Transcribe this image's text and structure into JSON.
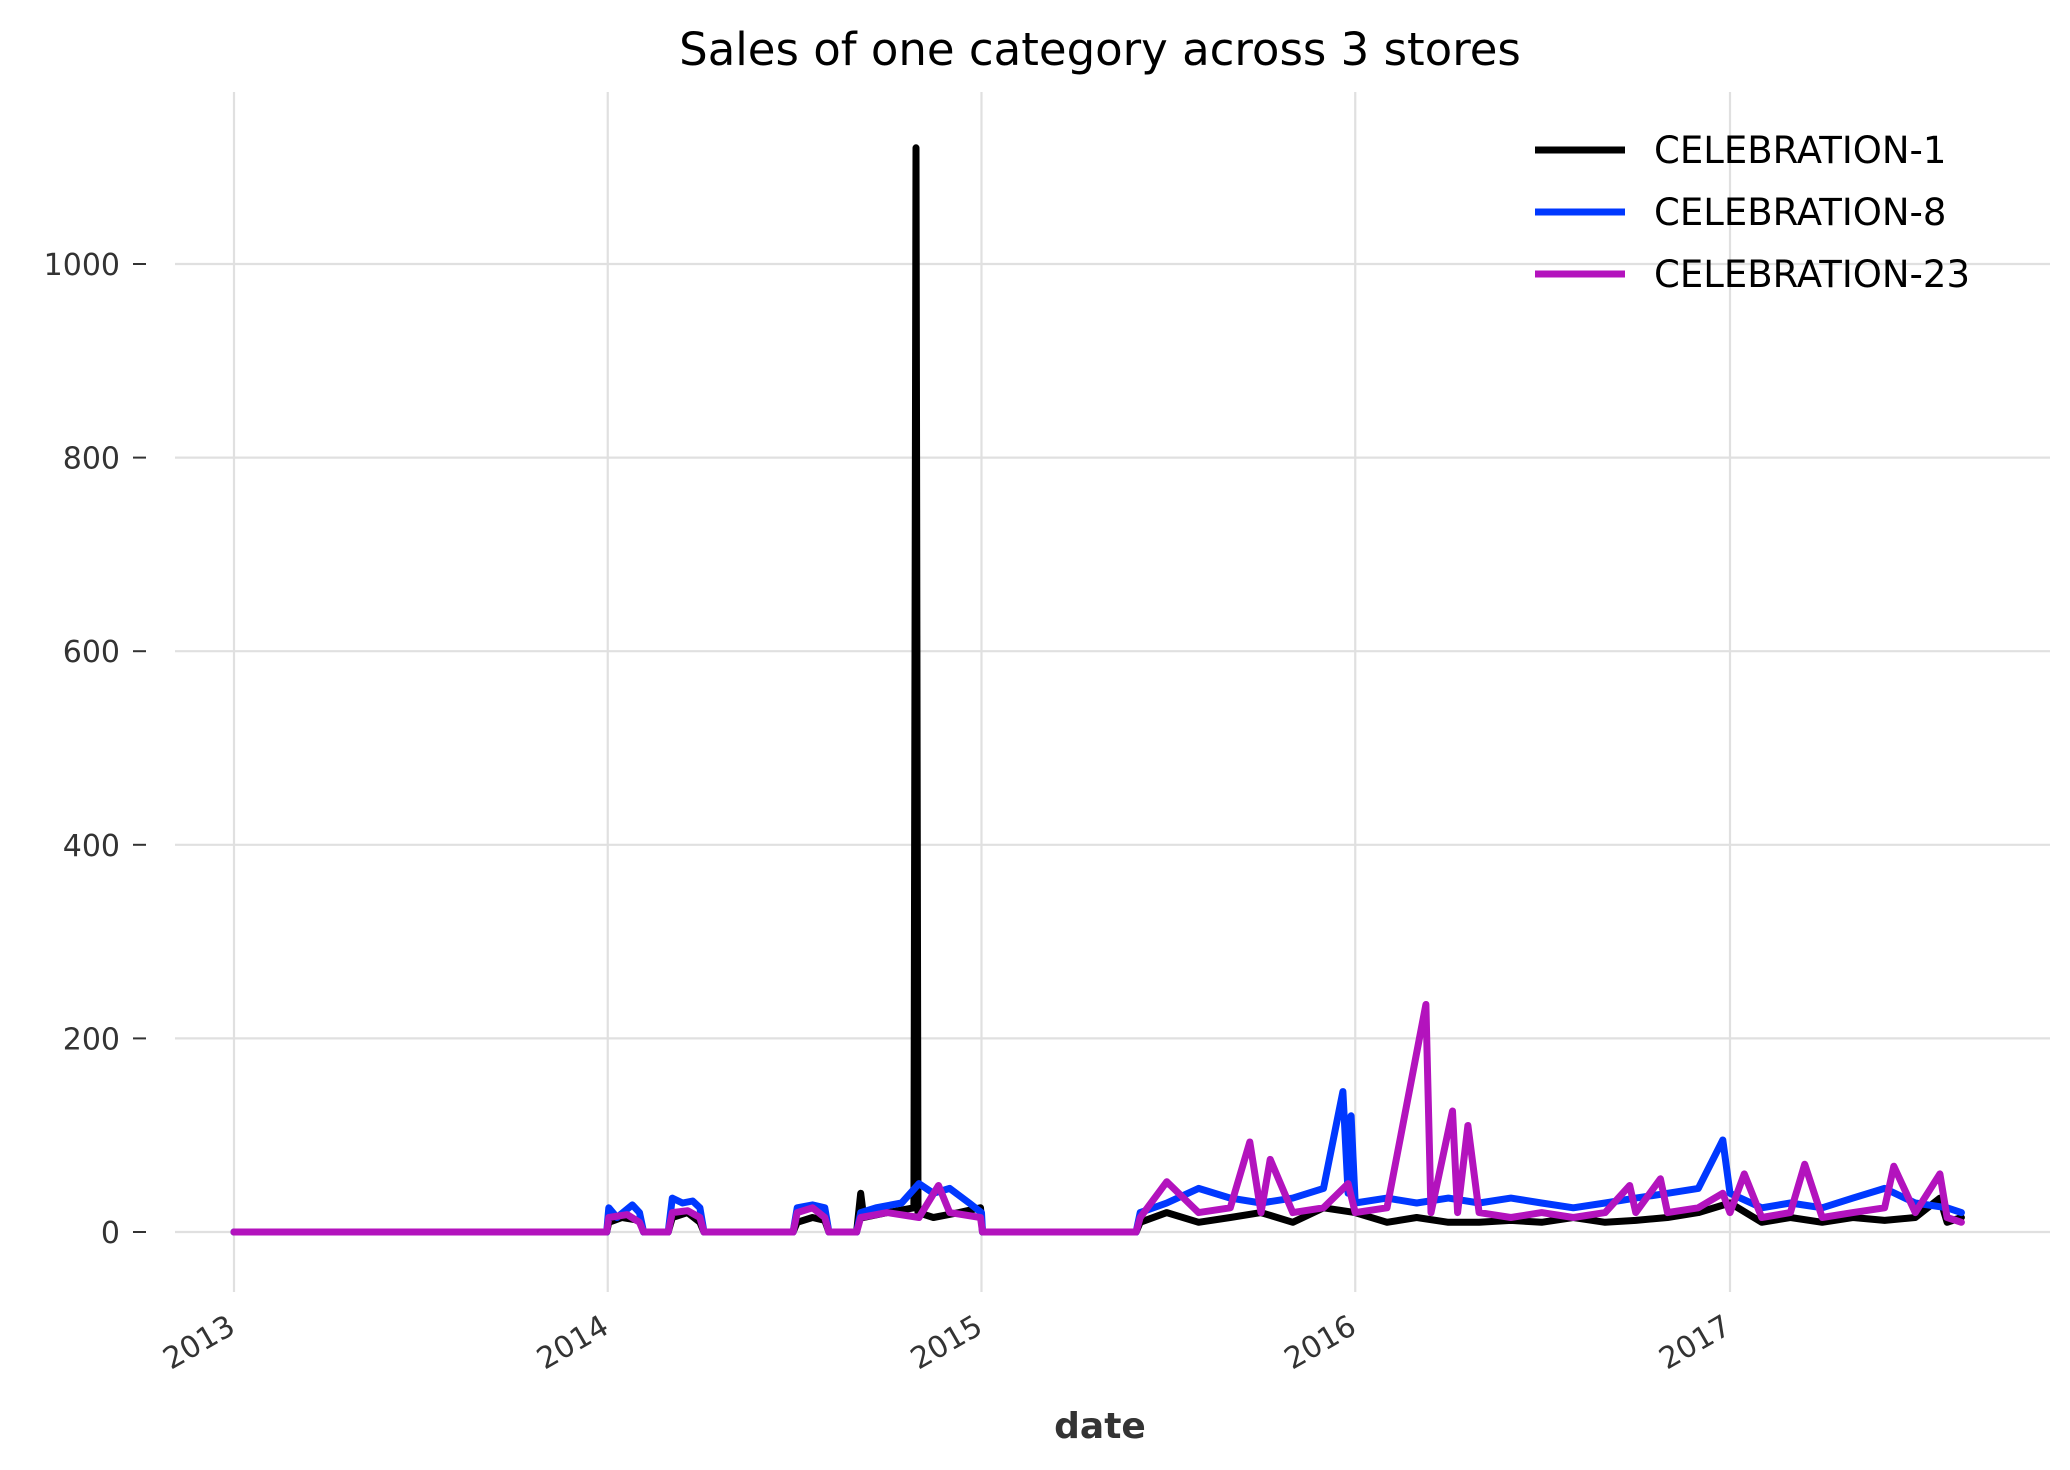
{
  "chart_data": {
    "type": "line",
    "title": "Sales of one category across 3 stores",
    "xlabel": "date",
    "ylabel": "",
    "x_type": "date",
    "xlim": [
      "2013-01-01",
      "2017-08-15"
    ],
    "ylim": [
      -100,
      1170
    ],
    "x_ticks": [
      "2013-01-01",
      "2014-01-01",
      "2015-01-01",
      "2016-01-01",
      "2017-01-01"
    ],
    "x_tick_labels": [
      "2013",
      "2014",
      "2015",
      "2016",
      "2017"
    ],
    "y_ticks": [
      0,
      200,
      400,
      600,
      800,
      1000
    ],
    "y_tick_labels": [
      "0",
      "200",
      "400",
      "600",
      "800",
      "1000"
    ],
    "grid": true,
    "legend_position": "top-right",
    "series": [
      {
        "name": "CELEBRATION-1",
        "color": "#000000",
        "points": [
          [
            "2013-01-01",
            0
          ],
          [
            "2013-12-31",
            0
          ],
          [
            "2014-01-02",
            10
          ],
          [
            "2014-01-15",
            15
          ],
          [
            "2014-02-01",
            12
          ],
          [
            "2014-02-05",
            0
          ],
          [
            "2014-03-01",
            0
          ],
          [
            "2014-03-05",
            15
          ],
          [
            "2014-03-20",
            20
          ],
          [
            "2014-04-01",
            10
          ],
          [
            "2014-04-05",
            0
          ],
          [
            "2014-07-01",
            0
          ],
          [
            "2014-07-05",
            10
          ],
          [
            "2014-07-20",
            15
          ],
          [
            "2014-08-01",
            12
          ],
          [
            "2014-08-05",
            0
          ],
          [
            "2014-09-01",
            0
          ],
          [
            "2014-09-05",
            40
          ],
          [
            "2014-09-08",
            15
          ],
          [
            "2014-10-01",
            20
          ],
          [
            "2014-10-27",
            25
          ],
          [
            "2014-10-29",
            1120
          ],
          [
            "2014-10-31",
            20
          ],
          [
            "2014-11-15",
            15
          ],
          [
            "2014-12-10",
            20
          ],
          [
            "2014-12-31",
            25
          ],
          [
            "2015-01-02",
            0
          ],
          [
            "2015-06-01",
            0
          ],
          [
            "2015-06-05",
            10
          ],
          [
            "2015-07-01",
            20
          ],
          [
            "2015-08-01",
            10
          ],
          [
            "2015-09-01",
            15
          ],
          [
            "2015-10-01",
            20
          ],
          [
            "2015-11-01",
            10
          ],
          [
            "2015-12-01",
            25
          ],
          [
            "2016-01-01",
            20
          ],
          [
            "2016-02-01",
            10
          ],
          [
            "2016-03-01",
            15
          ],
          [
            "2016-04-01",
            10
          ],
          [
            "2016-05-01",
            10
          ],
          [
            "2016-06-01",
            12
          ],
          [
            "2016-07-01",
            10
          ],
          [
            "2016-08-01",
            15
          ],
          [
            "2016-09-01",
            10
          ],
          [
            "2016-10-01",
            12
          ],
          [
            "2016-11-01",
            15
          ],
          [
            "2016-12-01",
            20
          ],
          [
            "2017-01-01",
            30
          ],
          [
            "2017-02-01",
            10
          ],
          [
            "2017-03-01",
            15
          ],
          [
            "2017-04-01",
            10
          ],
          [
            "2017-05-01",
            15
          ],
          [
            "2017-06-01",
            12
          ],
          [
            "2017-07-01",
            15
          ],
          [
            "2017-07-25",
            35
          ],
          [
            "2017-08-01",
            10
          ],
          [
            "2017-08-15",
            15
          ]
        ]
      },
      {
        "name": "CELEBRATION-8",
        "color": "#0038ff",
        "points": [
          [
            "2013-01-01",
            0
          ],
          [
            "2013-12-31",
            0
          ],
          [
            "2014-01-02",
            25
          ],
          [
            "2014-01-10",
            15
          ],
          [
            "2014-01-25",
            28
          ],
          [
            "2014-02-01",
            20
          ],
          [
            "2014-02-05",
            0
          ],
          [
            "2014-03-01",
            0
          ],
          [
            "2014-03-05",
            35
          ],
          [
            "2014-03-15",
            30
          ],
          [
            "2014-03-25",
            32
          ],
          [
            "2014-04-01",
            25
          ],
          [
            "2014-04-05",
            0
          ],
          [
            "2014-07-01",
            0
          ],
          [
            "2014-07-05",
            25
          ],
          [
            "2014-07-20",
            28
          ],
          [
            "2014-08-01",
            25
          ],
          [
            "2014-08-05",
            0
          ],
          [
            "2014-09-01",
            0
          ],
          [
            "2014-09-05",
            20
          ],
          [
            "2014-09-20",
            25
          ],
          [
            "2014-10-15",
            30
          ],
          [
            "2014-11-01",
            50
          ],
          [
            "2014-11-15",
            40
          ],
          [
            "2014-12-01",
            45
          ],
          [
            "2014-12-20",
            30
          ],
          [
            "2015-01-01",
            20
          ],
          [
            "2015-01-02",
            0
          ],
          [
            "2015-06-01",
            0
          ],
          [
            "2015-06-05",
            20
          ],
          [
            "2015-07-01",
            30
          ],
          [
            "2015-08-01",
            45
          ],
          [
            "2015-09-01",
            35
          ],
          [
            "2015-10-01",
            30
          ],
          [
            "2015-11-01",
            35
          ],
          [
            "2015-12-01",
            45
          ],
          [
            "2015-12-20",
            145
          ],
          [
            "2015-12-25",
            40
          ],
          [
            "2015-12-28",
            120
          ],
          [
            "2016-01-01",
            30
          ],
          [
            "2016-02-01",
            35
          ],
          [
            "2016-03-01",
            30
          ],
          [
            "2016-04-01",
            35
          ],
          [
            "2016-05-01",
            30
          ],
          [
            "2016-06-01",
            35
          ],
          [
            "2016-07-01",
            30
          ],
          [
            "2016-08-01",
            25
          ],
          [
            "2016-09-01",
            30
          ],
          [
            "2016-10-01",
            35
          ],
          [
            "2016-11-01",
            40
          ],
          [
            "2016-12-01",
            45
          ],
          [
            "2016-12-25",
            95
          ],
          [
            "2017-01-01",
            40
          ],
          [
            "2017-02-01",
            25
          ],
          [
            "2017-03-01",
            30
          ],
          [
            "2017-04-01",
            25
          ],
          [
            "2017-05-01",
            35
          ],
          [
            "2017-06-01",
            45
          ],
          [
            "2017-07-01",
            30
          ],
          [
            "2017-08-01",
            25
          ],
          [
            "2017-08-15",
            20
          ]
        ]
      },
      {
        "name": "CELEBRATION-23",
        "color": "#b313bd",
        "points": [
          [
            "2013-01-01",
            0
          ],
          [
            "2013-12-31",
            0
          ],
          [
            "2014-01-02",
            15
          ],
          [
            "2014-01-20",
            18
          ],
          [
            "2014-02-01",
            10
          ],
          [
            "2014-02-05",
            0
          ],
          [
            "2014-03-01",
            0
          ],
          [
            "2014-03-05",
            20
          ],
          [
            "2014-03-20",
            22
          ],
          [
            "2014-04-01",
            15
          ],
          [
            "2014-04-05",
            0
          ],
          [
            "2014-07-01",
            0
          ],
          [
            "2014-07-05",
            20
          ],
          [
            "2014-07-20",
            25
          ],
          [
            "2014-08-01",
            15
          ],
          [
            "2014-08-05",
            0
          ],
          [
            "2014-09-01",
            0
          ],
          [
            "2014-09-05",
            15
          ],
          [
            "2014-10-01",
            20
          ],
          [
            "2014-11-01",
            15
          ],
          [
            "2014-11-20",
            48
          ],
          [
            "2014-12-01",
            20
          ],
          [
            "2014-12-31",
            15
          ],
          [
            "2015-01-02",
            0
          ],
          [
            "2015-06-01",
            0
          ],
          [
            "2015-06-05",
            15
          ],
          [
            "2015-07-01",
            52
          ],
          [
            "2015-08-01",
            20
          ],
          [
            "2015-09-01",
            25
          ],
          [
            "2015-09-20",
            93
          ],
          [
            "2015-10-01",
            20
          ],
          [
            "2015-10-10",
            75
          ],
          [
            "2015-11-01",
            20
          ],
          [
            "2015-12-01",
            25
          ],
          [
            "2015-12-25",
            50
          ],
          [
            "2016-01-01",
            20
          ],
          [
            "2016-02-01",
            25
          ],
          [
            "2016-03-10",
            235
          ],
          [
            "2016-03-15",
            20
          ],
          [
            "2016-04-05",
            125
          ],
          [
            "2016-04-10",
            20
          ],
          [
            "2016-04-20",
            110
          ],
          [
            "2016-05-01",
            20
          ],
          [
            "2016-06-01",
            15
          ],
          [
            "2016-07-01",
            20
          ],
          [
            "2016-08-01",
            15
          ],
          [
            "2016-09-01",
            20
          ],
          [
            "2016-09-25",
            48
          ],
          [
            "2016-10-01",
            20
          ],
          [
            "2016-10-25",
            55
          ],
          [
            "2016-11-01",
            20
          ],
          [
            "2016-12-01",
            25
          ],
          [
            "2016-12-25",
            40
          ],
          [
            "2017-01-01",
            20
          ],
          [
            "2017-01-15",
            60
          ],
          [
            "2017-02-01",
            15
          ],
          [
            "2017-03-01",
            20
          ],
          [
            "2017-03-15",
            70
          ],
          [
            "2017-04-01",
            15
          ],
          [
            "2017-05-01",
            20
          ],
          [
            "2017-06-01",
            25
          ],
          [
            "2017-06-10",
            68
          ],
          [
            "2017-07-01",
            20
          ],
          [
            "2017-07-25",
            60
          ],
          [
            "2017-08-01",
            15
          ],
          [
            "2017-08-15",
            10
          ]
        ]
      }
    ]
  }
}
